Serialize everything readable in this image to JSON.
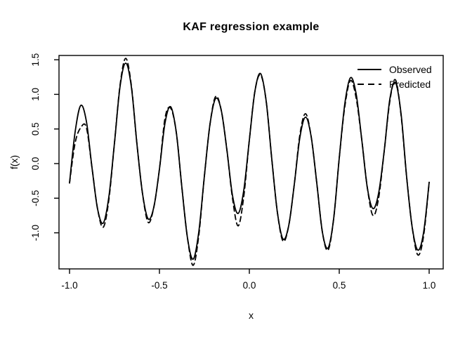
{
  "chart_data": {
    "type": "line",
    "title": "KAF regression example",
    "xlabel": "x",
    "ylabel": "f(x)",
    "grid": false,
    "line_color": "#000000",
    "background_color": "#ffffff",
    "xlim": [
      -1.07,
      1.08
    ],
    "ylim": [
      -1.56,
      1.56
    ],
    "x_tick_values": [
      -1.0,
      -0.5,
      0.0,
      0.5,
      1.0
    ],
    "x_tick_labels": [
      "-1.0",
      "-0.5",
      "0.0",
      "0.5",
      "1.0"
    ],
    "y_tick_values": [
      -1.0,
      -0.5,
      0.0,
      0.5,
      1.0,
      1.5
    ],
    "y_tick_labels": [
      "-1.0",
      "-0.5",
      "0.0",
      "0.5",
      "1.0",
      "1.5"
    ],
    "legend": {
      "position": "top-right",
      "box": false,
      "entries": [
        {
          "label": "Observed",
          "line_style": "solid"
        },
        {
          "label": "Predicted",
          "line_style": "dashed"
        }
      ]
    },
    "x": [
      -1,
      -0.96875,
      -0.9375,
      -0.90625,
      -0.875,
      -0.84375,
      -0.8125,
      -0.78125,
      -0.75,
      -0.71875,
      -0.6875,
      -0.65625,
      -0.625,
      -0.59375,
      -0.5625,
      -0.53125,
      -0.5,
      -0.46875,
      -0.4375,
      -0.40625,
      -0.375,
      -0.34375,
      -0.3125,
      -0.28125,
      -0.25,
      -0.21875,
      -0.1875,
      -0.15625,
      -0.125,
      -0.09375,
      -0.0625,
      -0.03125,
      0,
      0.03125,
      0.0625,
      0.09375,
      0.125,
      0.15625,
      0.1875,
      0.21875,
      0.25,
      0.28125,
      0.3125,
      0.34375,
      0.375,
      0.40625,
      0.4375,
      0.46875,
      0.5,
      0.53125,
      0.5625,
      0.59375,
      0.625,
      0.65625,
      0.6875,
      0.71875,
      0.75,
      0.78125,
      0.8125,
      0.84375,
      0.875,
      0.90625,
      0.9375,
      0.96875,
      1
    ],
    "series": [
      {
        "name": "Observed",
        "style": "solid",
        "values": [
          -0.28,
          0.46,
          0.84,
          0.61,
          -0.06,
          -0.66,
          -0.86,
          -0.48,
          0.3,
          1.12,
          1.45,
          1.11,
          0.28,
          -0.44,
          -0.8,
          -0.63,
          -0.08,
          0.59,
          0.82,
          0.45,
          -0.35,
          -1.08,
          -1.38,
          -0.99,
          -0.18,
          0.57,
          0.94,
          0.77,
          0.2,
          -0.46,
          -0.72,
          -0.39,
          0.34,
          1.05,
          1.3,
          0.9,
          0.06,
          -0.71,
          -1.09,
          -0.9,
          -0.3,
          0.38,
          0.67,
          0.39,
          -0.28,
          -0.99,
          -1.22,
          -0.8,
          0.08,
          0.87,
          1.24,
          1.01,
          0.35,
          -0.35,
          -0.65,
          -0.43,
          0.18,
          0.93,
          1.17,
          0.72,
          -0.2,
          -0.93,
          -1.25,
          -1.0,
          -0.27
        ]
      },
      {
        "name": "Predicted",
        "style": "dashed",
        "values": [
          -0.28,
          0.3,
          0.52,
          0.52,
          -0.06,
          -0.66,
          -0.92,
          -0.52,
          0.3,
          1.14,
          1.52,
          1.13,
          0.28,
          -0.44,
          -0.85,
          -0.63,
          -0.08,
          0.66,
          0.8,
          0.45,
          -0.35,
          -1.08,
          -1.47,
          -1.04,
          -0.18,
          0.57,
          0.97,
          0.77,
          0.2,
          -0.5,
          -0.9,
          -0.48,
          0.34,
          1.05,
          1.28,
          0.9,
          0.06,
          -0.71,
          -1.12,
          -0.9,
          -0.3,
          0.42,
          0.72,
          0.39,
          -0.28,
          -0.99,
          -1.25,
          -0.8,
          0.08,
          0.83,
          1.2,
          0.95,
          0.35,
          -0.35,
          -0.75,
          -0.5,
          0.18,
          0.9,
          1.21,
          0.7,
          -0.2,
          -0.93,
          -1.32,
          -1.05,
          -0.27
        ]
      }
    ]
  }
}
